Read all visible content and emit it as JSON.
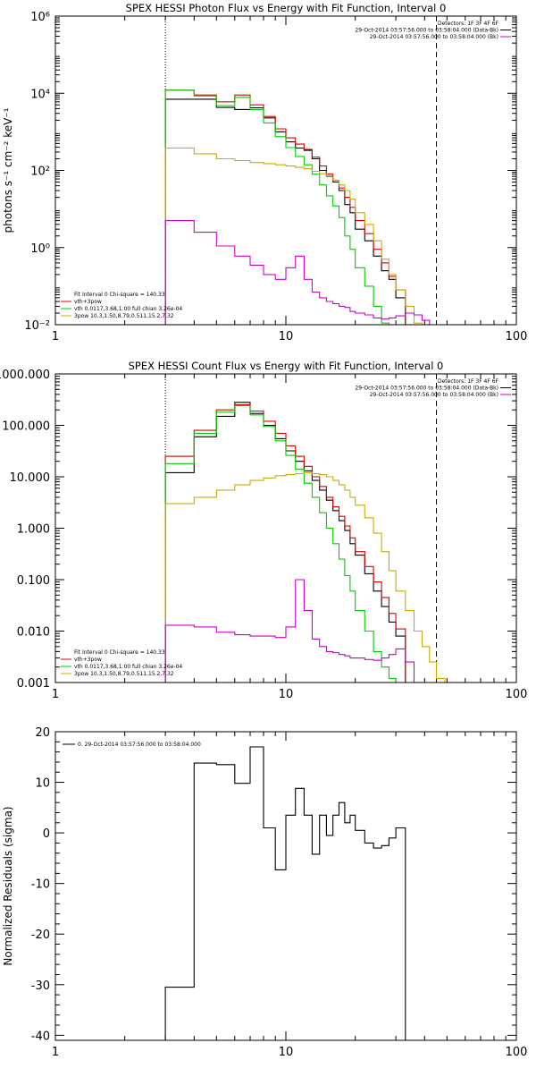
{
  "chart_data": [
    {
      "type": "line",
      "title": "SPEX HESSI Photon Flux vs Energy with Fit Function, Interval 0",
      "ylabel": "photons s⁻¹ cm⁻² keV⁻¹",
      "xscale": "log",
      "yscale": "log",
      "xlim": [
        1,
        100
      ],
      "ylim": [
        0.01,
        1000000
      ],
      "x_ticks": [
        {
          "v": 1,
          "label": "1"
        },
        {
          "v": 10,
          "label": "10"
        },
        {
          "v": 100,
          "label": "100"
        }
      ],
      "y_ticks": [
        {
          "v": 0.01,
          "label": "10⁻²"
        },
        {
          "v": 1,
          "label": "10⁰"
        },
        {
          "v": 100,
          "label": "10²"
        },
        {
          "v": 10000,
          "label": "10⁴"
        },
        {
          "v": 1000000,
          "label": "10⁶"
        }
      ],
      "vlines": [
        {
          "x": 3,
          "style": "dotted"
        },
        {
          "x": 45,
          "style": "dashed"
        }
      ],
      "legend_tr": [
        {
          "text": "Detectors: 1F 3F 4F 6F",
          "color": ""
        },
        {
          "text": "29-Oct-2014 03:57:56.000 to 03:58:04.000 (Data-Bk)",
          "color": "#000000"
        },
        {
          "text": "29-Oct-2014 03:57:56.000 to 03:58:04.000 (Bk)",
          "color": "#cc00cc"
        }
      ],
      "legend_bl": [
        {
          "text": "Fit Interval  0    Chi-square = 140.33",
          "color": ""
        },
        {
          "text": "vth+3pow",
          "color": "#dd0000"
        },
        {
          "text": "vth 0.0117,3.68,1.00  full chian 3.26e-04",
          "color": "#00cc00"
        },
        {
          "text": "3pow 10.3,1.50,8.79,0.511,15.2,7.32",
          "color": "#ccaa00"
        }
      ],
      "edges": [
        3,
        4,
        5,
        6,
        7,
        8,
        9,
        10,
        11,
        12,
        13,
        14,
        15,
        16,
        17,
        18,
        19,
        20,
        22,
        24,
        26,
        28,
        30,
        33,
        36,
        39,
        42,
        45,
        49,
        53,
        57
      ],
      "series": [
        {
          "name": "Data-Bk",
          "color": "#000000",
          "values": [
            7000,
            7000,
            4300,
            3800,
            4200,
            2300,
            1000,
            550,
            380,
            330,
            200,
            100,
            70,
            50,
            30,
            13,
            8,
            3,
            1.5,
            0.6,
            0.25,
            0.15,
            0.05
          ]
        },
        {
          "name": "vth+3pow",
          "color": "#dd0000",
          "values": [
            12000,
            9000,
            6000,
            9000,
            5000,
            2500,
            1200,
            700,
            480,
            350,
            220,
            130,
            80,
            55,
            35,
            20,
            11,
            5,
            2.3,
            0.9,
            0.4,
            0.18,
            0.08
          ]
        },
        {
          "name": "vth",
          "color": "#00cc00",
          "values": [
            12000,
            8500,
            4800,
            7800,
            3800,
            1700,
            750,
            390,
            230,
            140,
            80,
            42,
            22,
            12,
            6,
            2,
            0.9,
            0.3,
            0.1,
            0.03,
            0.011,
            0.006,
            0.004
          ]
        },
        {
          "name": "3pow",
          "color": "#ccaa00",
          "values": [
            380,
            270,
            200,
            180,
            160,
            150,
            140,
            130,
            120,
            110,
            95,
            82,
            68,
            55,
            42,
            30,
            18,
            8,
            4,
            1.5,
            0.5,
            0.2,
            0.08,
            0.03,
            0.011,
            0.006
          ]
        },
        {
          "name": "Bk",
          "color": "#cc00cc",
          "values": [
            5,
            2.5,
            1.1,
            0.6,
            0.35,
            0.2,
            0.15,
            0.3,
            0.6,
            0.15,
            0.07,
            0.05,
            0.04,
            0.035,
            0.03,
            0.028,
            0.022,
            0.02,
            0.018,
            0.015,
            0.014,
            0.015,
            0.017,
            0.02,
            0.018,
            0.013,
            0.01
          ]
        }
      ]
    },
    {
      "type": "line",
      "title": "SPEX HESSI Count Flux vs Energy with Fit Function, Interval 0",
      "ylabel": "",
      "xscale": "log",
      "yscale": "log",
      "xlim": [
        1,
        100
      ],
      "ylim": [
        0.001,
        1000
      ],
      "x_ticks": [
        {
          "v": 1,
          "label": "1"
        },
        {
          "v": 10,
          "label": "10"
        },
        {
          "v": 100,
          "label": "100"
        }
      ],
      "y_ticks": [
        {
          "v": 0.001,
          "label": "0.001"
        },
        {
          "v": 0.01,
          "label": "0.010"
        },
        {
          "v": 0.1,
          "label": "0.100"
        },
        {
          "v": 1,
          "label": "1.000"
        },
        {
          "v": 10,
          "label": "10.000"
        },
        {
          "v": 100,
          "label": "100.000"
        },
        {
          "v": 1000,
          "label": "1000.000"
        }
      ],
      "vlines": [
        {
          "x": 3,
          "style": "dotted"
        },
        {
          "x": 45,
          "style": "dashed"
        }
      ],
      "legend_tr": [
        {
          "text": "Detectors: 1F 3F 4F 6F",
          "color": ""
        },
        {
          "text": "29-Oct-2014 03:57:56.000 to 03:58:04.000 (Data-Bk)",
          "color": "#000000"
        },
        {
          "text": "29-Oct-2014 03:57:56.000 to 03:58:04.000 (Bk)",
          "color": "#cc00cc"
        }
      ],
      "legend_bl": [
        {
          "text": "Fit Interval  0    Chi-square = 140.33",
          "color": ""
        },
        {
          "text": "vth+3pow",
          "color": "#dd0000"
        },
        {
          "text": "vth 0.0117,3.68,1.00  full chian 3.26e-04",
          "color": "#00cc00"
        },
        {
          "text": "3pow 10.3,1.50,8.79,0.511,15.2,7.32",
          "color": "#ccaa00"
        }
      ],
      "edges": [
        3,
        4,
        5,
        6,
        7,
        8,
        9,
        10,
        11,
        12,
        13,
        14,
        15,
        16,
        17,
        18,
        19,
        20,
        22,
        24,
        26,
        28,
        30,
        33,
        36,
        39,
        42,
        45,
        49,
        53,
        57
      ],
      "series": [
        {
          "name": "Data-Bk",
          "color": "#000000",
          "values": [
            12,
            60,
            150,
            280,
            170,
            100,
            55,
            32,
            20,
            13,
            8.5,
            5.5,
            3.5,
            2.2,
            1.4,
            0.9,
            0.5,
            0.3,
            0.13,
            0.06,
            0.03,
            0.015,
            0.008
          ]
        },
        {
          "name": "vth+3pow",
          "color": "#dd0000",
          "values": [
            25,
            80,
            200,
            250,
            190,
            120,
            70,
            40,
            25,
            16,
            10,
            6.5,
            4,
            2.6,
            1.7,
            1.1,
            0.65,
            0.35,
            0.18,
            0.09,
            0.045,
            0.022,
            0.011
          ]
        },
        {
          "name": "vth",
          "color": "#00cc00",
          "values": [
            18,
            70,
            180,
            240,
            160,
            95,
            50,
            26,
            14,
            7.5,
            4,
            2,
            1,
            0.5,
            0.25,
            0.12,
            0.06,
            0.025,
            0.01,
            0.004,
            0.002,
            0.0012
          ]
        },
        {
          "name": "3pow",
          "color": "#ccaa00",
          "values": [
            3,
            4,
            5.5,
            7,
            8.5,
            9.5,
            10.5,
            11,
            11.5,
            12,
            11.5,
            11,
            10,
            8.5,
            7,
            5.5,
            4,
            2.8,
            1.6,
            0.8,
            0.35,
            0.15,
            0.06,
            0.025,
            0.01,
            0.005,
            0.0025,
            0.0012
          ]
        },
        {
          "name": "Bk",
          "color": "#cc00cc",
          "values": [
            0.013,
            0.012,
            0.0095,
            0.0085,
            0.008,
            0.008,
            0.0075,
            0.012,
            0.1,
            0.025,
            0.007,
            0.005,
            0.004,
            0.0038,
            0.0035,
            0.0033,
            0.003,
            0.003,
            0.0028,
            0.0027,
            0.003,
            0.0035,
            0.0045,
            0.0025,
            0.0008
          ]
        }
      ]
    },
    {
      "type": "line",
      "title": "",
      "ylabel": "Normalized Residuals (sigma)",
      "xscale": "log",
      "yscale": "linear",
      "xlim": [
        1,
        100
      ],
      "ylim": [
        -41,
        20
      ],
      "x_ticks": [
        {
          "v": 1,
          "label": "1"
        },
        {
          "v": 10,
          "label": "10"
        },
        {
          "v": 100,
          "label": "100"
        }
      ],
      "y_ticks": [
        {
          "v": 20,
          "label": "20"
        },
        {
          "v": 10,
          "label": "10"
        },
        {
          "v": 0,
          "label": "0"
        },
        {
          "v": -10,
          "label": "-10"
        },
        {
          "v": -20,
          "label": "-20"
        },
        {
          "v": -30,
          "label": "-30"
        },
        {
          "v": -40,
          "label": "-40"
        }
      ],
      "vlines": [],
      "legend_tr": [],
      "legend_bl": [],
      "legend_tl": [
        {
          "text": "0. 29-Oct-2014 03:57:56.000 to 03:58:04.000",
          "color": "#000000"
        }
      ],
      "edges": [
        3,
        4,
        5,
        6,
        7,
        8,
        9,
        10,
        11,
        12,
        13,
        14,
        15,
        16,
        17,
        18,
        19,
        20,
        22,
        24,
        26,
        28,
        30,
        33,
        36,
        39,
        42,
        45
      ],
      "series": [
        {
          "name": "0. 29-Oct-2014 03:57:56.000 to 03:58:04.000",
          "color": "#000000",
          "values": [
            -30.5,
            13.8,
            13.5,
            9.8,
            17,
            1,
            -7.3,
            3.5,
            8.8,
            3.5,
            -4.2,
            3.5,
            -0.5,
            3.5,
            6,
            2,
            3.5,
            0.5,
            -2,
            -3,
            -2.5,
            -1,
            1
          ]
        }
      ]
    }
  ]
}
